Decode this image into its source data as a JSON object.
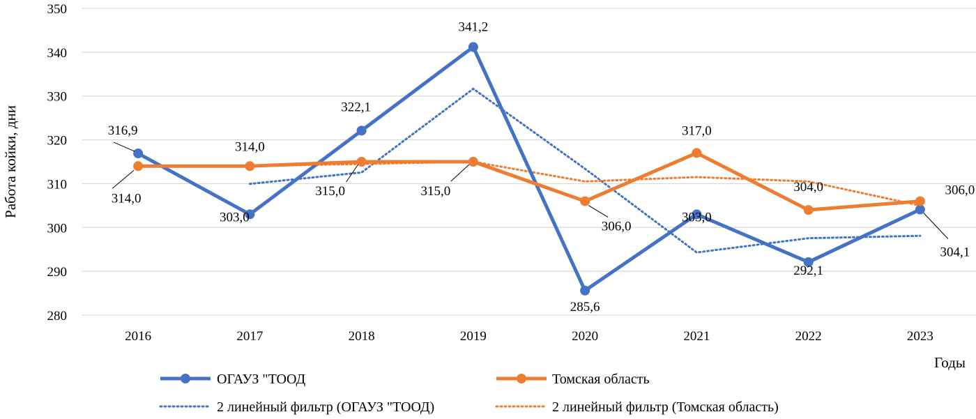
{
  "chart_data": {
    "type": "line",
    "title": "",
    "ylabel": "Работа койки, дни",
    "xlabel": "Годы",
    "categories": [
      "2016",
      "2017",
      "2018",
      "2019",
      "2020",
      "2021",
      "2022",
      "2023"
    ],
    "ylim": [
      280,
      350
    ],
    "yticks": [
      "280",
      "290",
      "300",
      "310",
      "320",
      "330",
      "340",
      "350"
    ],
    "grid": true,
    "legend_position": "bottom",
    "series": [
      {
        "name": "ОГАУЗ \"ТООД",
        "values": [
          316.9,
          303.0,
          322.1,
          341.2,
          285.6,
          303.0,
          292.1,
          304.1
        ],
        "labels": [
          "316,9",
          "303,0",
          "322,1",
          "341,2",
          "285,6",
          "303,0",
          "292,1",
          "304,1"
        ],
        "color": "#4472c4",
        "style": "solid-markers"
      },
      {
        "name": "Томская область",
        "values": [
          314.0,
          314.0,
          315.0,
          315.0,
          306.0,
          317.0,
          304.0,
          306.0
        ],
        "labels": [
          "314,0",
          "314,0",
          "315,0",
          "315,0",
          "306,0",
          "317,0",
          "304,0",
          "306,0"
        ],
        "color": "#ed7d31",
        "style": "solid-markers"
      }
    ],
    "trendlines": [
      {
        "name": "2 линейный фильтр (ОГАУЗ \"ТООД)",
        "type": "moving-average",
        "period": 2,
        "color": "#4472c4"
      },
      {
        "name": "2 линейный фильтр (Томская область)",
        "type": "moving-average",
        "period": 2,
        "color": "#ed7d31"
      }
    ]
  }
}
